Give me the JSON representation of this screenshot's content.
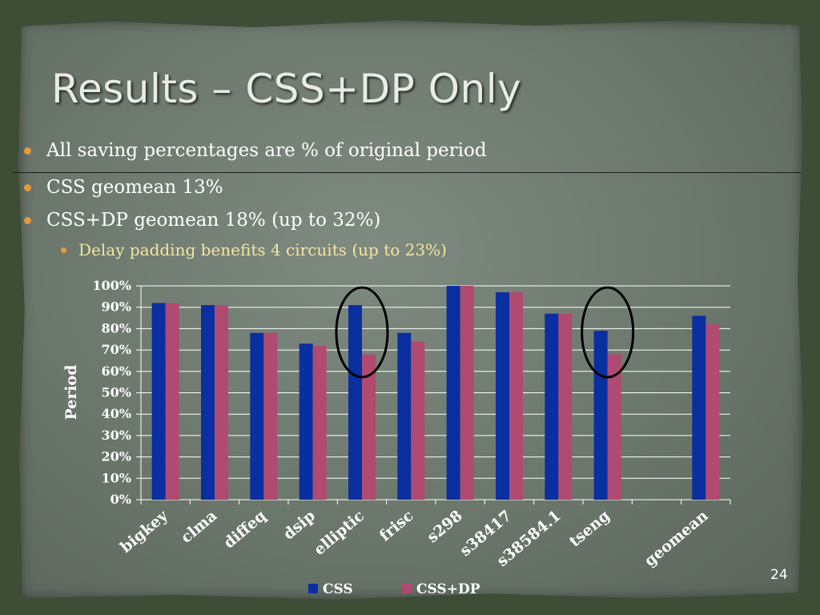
{
  "slide": {
    "title": "Results – CSS+DP Only",
    "bullets": [
      "All saving percentages are % of original period",
      "CSS geomean 13%",
      "CSS+DP geomean 18% (up to 32%)"
    ],
    "sub_bullet": "Delay padding benefits 4 circuits (up to 23%)",
    "page_number": "24",
    "colors": {
      "accent_bullet": "#e59a3f",
      "sub_bullet_text": "#f3e6a0",
      "highlight_ellipse": "#000000"
    }
  },
  "chart_data": {
    "type": "bar",
    "categories": [
      "bigkey",
      "clma",
      "diffeq",
      "dsip",
      "elliptic",
      "frisc",
      "s298",
      "s38417",
      "s38584.1",
      "tseng",
      "",
      "geomean"
    ],
    "series": [
      {
        "name": "CSS",
        "color": "#0a2fa0",
        "values": [
          92,
          91,
          78,
          73,
          91,
          78,
          100,
          97,
          87,
          79,
          null,
          86
        ]
      },
      {
        "name": "CSS+DP",
        "color": "#b04a70",
        "values": [
          92,
          91,
          78,
          72,
          68,
          74,
          100,
          97,
          87,
          68,
          null,
          82
        ]
      }
    ],
    "ylabel": "Period",
    "ylim": [
      0,
      100
    ],
    "yticks": [
      "0%",
      "10%",
      "20%",
      "30%",
      "40%",
      "50%",
      "60%",
      "70%",
      "80%",
      "90%",
      "100%"
    ],
    "grid": true,
    "legend": "bottom",
    "highlighted_categories": [
      "elliptic",
      "tseng"
    ]
  }
}
